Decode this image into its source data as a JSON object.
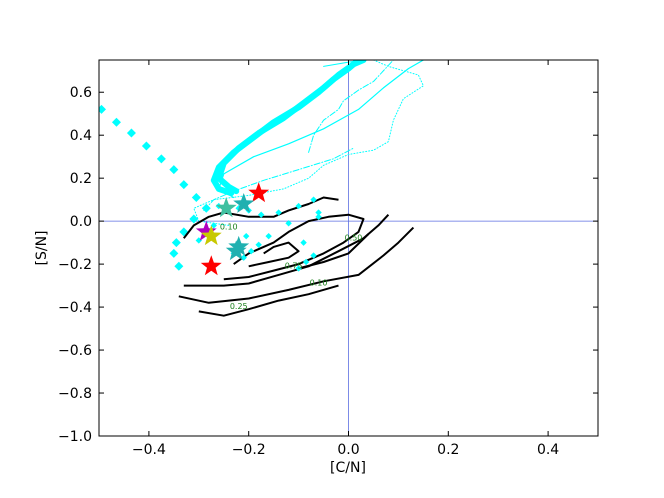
{
  "chart_data": {
    "type": "line",
    "title": "",
    "xlabel": "[C/N]",
    "ylabel": "[S/N]",
    "xlim": [
      -0.5,
      0.5
    ],
    "ylim": [
      -1.0,
      0.75
    ],
    "xticks": [
      -0.4,
      -0.2,
      0.0,
      0.2,
      0.4
    ],
    "xtick_labels": [
      "−0.4",
      "−0.2",
      "0.0",
      "0.2",
      "0.4"
    ],
    "yticks": [
      -1.0,
      -0.8,
      -0.6,
      -0.4,
      -0.2,
      0.0,
      0.2,
      0.4,
      0.6
    ],
    "ytick_labels": [
      "−1.0",
      "−0.8",
      "−0.6",
      "−0.4",
      "−0.2",
      "0.0",
      "0.2",
      "0.4",
      "0.6"
    ],
    "grid": false,
    "reference_lines": {
      "x": 0.0,
      "y": 0.0,
      "color": "#5b6ee1"
    },
    "colors": {
      "cyan": "#00ffff",
      "contour": "#000000",
      "contour_label": "#1a7f1a"
    },
    "cyan_curves": [
      {
        "style": "thick",
        "points": [
          [
            -0.225,
            0.14
          ],
          [
            -0.24,
            0.16
          ],
          [
            -0.26,
            0.2
          ],
          [
            -0.25,
            0.27
          ],
          [
            -0.22,
            0.34
          ],
          [
            -0.18,
            0.41
          ],
          [
            -0.13,
            0.48
          ],
          [
            -0.09,
            0.55
          ],
          [
            -0.05,
            0.62
          ],
          [
            -0.02,
            0.68
          ],
          [
            0.01,
            0.73
          ],
          [
            0.03,
            0.75
          ]
        ]
      },
      {
        "style": "thick",
        "points": [
          [
            -0.235,
            0.13
          ],
          [
            -0.26,
            0.15
          ],
          [
            -0.27,
            0.19
          ],
          [
            -0.26,
            0.25
          ],
          [
            -0.23,
            0.32
          ],
          [
            -0.19,
            0.39
          ],
          [
            -0.15,
            0.46
          ],
          [
            -0.1,
            0.53
          ],
          [
            -0.06,
            0.6
          ],
          [
            -0.03,
            0.66
          ],
          [
            0.0,
            0.71
          ],
          [
            0.02,
            0.75
          ]
        ]
      },
      {
        "style": "solid",
        "points": [
          [
            -0.23,
            0.11
          ],
          [
            -0.26,
            0.15
          ],
          [
            -0.25,
            0.22
          ],
          [
            -0.19,
            0.3
          ],
          [
            -0.12,
            0.36
          ],
          [
            -0.05,
            0.43
          ],
          [
            0.02,
            0.52
          ],
          [
            0.07,
            0.62
          ],
          [
            0.12,
            0.71
          ],
          [
            0.15,
            0.75
          ]
        ]
      },
      {
        "style": "dashdot",
        "points": [
          [
            -0.29,
            0.05
          ],
          [
            -0.27,
            0.1
          ],
          [
            -0.23,
            0.14
          ],
          [
            -0.17,
            0.19
          ],
          [
            -0.1,
            0.24
          ],
          [
            -0.03,
            0.29
          ],
          [
            0.01,
            0.34
          ]
        ]
      },
      {
        "style": "dashdot",
        "points": [
          [
            -0.08,
            0.32
          ],
          [
            -0.07,
            0.4
          ],
          [
            -0.05,
            0.47
          ],
          [
            -0.02,
            0.52
          ],
          [
            -0.01,
            0.56
          ],
          [
            0.02,
            0.61
          ],
          [
            0.05,
            0.65
          ],
          [
            0.09,
            0.75
          ]
        ]
      },
      {
        "style": "dotted",
        "points": [
          [
            -0.24,
            -0.02
          ],
          [
            -0.3,
            0.0
          ],
          [
            -0.31,
            0.06
          ],
          [
            -0.27,
            0.1
          ],
          [
            -0.2,
            0.12
          ],
          [
            -0.13,
            0.15
          ],
          [
            -0.08,
            0.2
          ],
          [
            -0.05,
            0.26
          ],
          [
            0.0,
            0.31
          ],
          [
            0.05,
            0.33
          ],
          [
            0.08,
            0.37
          ],
          [
            0.09,
            0.47
          ],
          [
            0.11,
            0.57
          ],
          [
            0.15,
            0.63
          ],
          [
            0.14,
            0.68
          ],
          [
            0.08,
            0.72
          ],
          [
            0.05,
            0.75
          ]
        ]
      },
      {
        "style": "solid-thin",
        "points": [
          [
            -0.05,
            0.72
          ],
          [
            0.0,
            0.74
          ],
          [
            0.03,
            0.75
          ]
        ]
      }
    ],
    "diamond_series": [
      [
        -0.495,
        0.52
      ],
      [
        -0.465,
        0.46
      ],
      [
        -0.435,
        0.41
      ],
      [
        -0.405,
        0.35
      ],
      [
        -0.375,
        0.29
      ],
      [
        -0.35,
        0.24
      ],
      [
        -0.33,
        0.17
      ],
      [
        -0.305,
        0.11
      ],
      [
        -0.285,
        0.06
      ],
      [
        -0.31,
        0.01
      ],
      [
        -0.33,
        -0.05
      ],
      [
        -0.345,
        -0.1
      ],
      [
        -0.35,
        -0.15
      ],
      [
        -0.34,
        -0.21
      ]
    ],
    "cyan_markers": [
      [
        -0.26,
        0.07
      ],
      [
        -0.22,
        0.06
      ],
      [
        -0.2,
        0.05
      ],
      [
        -0.175,
        0.03
      ],
      [
        -0.14,
        0.04
      ],
      [
        -0.1,
        0.07
      ],
      [
        -0.07,
        0.1
      ],
      [
        -0.06,
        0.04
      ],
      [
        -0.205,
        -0.07
      ],
      [
        -0.22,
        -0.11
      ],
      [
        -0.23,
        -0.15
      ],
      [
        -0.21,
        -0.17
      ],
      [
        -0.195,
        -0.14
      ],
      [
        -0.18,
        -0.11
      ],
      [
        -0.16,
        -0.07
      ],
      [
        -0.12,
        -0.01
      ],
      [
        -0.09,
        -0.1
      ],
      [
        -0.06,
        0.02
      ],
      [
        -0.1,
        -0.22
      ],
      [
        -0.085,
        -0.19
      ],
      [
        -0.07,
        -0.16
      ],
      [
        -0.3,
        -0.09
      ],
      [
        -0.285,
        -0.04
      ],
      [
        -0.27,
        -0.02
      ]
    ],
    "stars": [
      {
        "color": "#ff0000",
        "x": -0.18,
        "y": 0.13
      },
      {
        "color": "#ff0000",
        "x": -0.275,
        "y": -0.21
      },
      {
        "color": "#b000c0",
        "x": -0.285,
        "y": -0.05
      },
      {
        "color": "#c8c800",
        "x": -0.275,
        "y": -0.07
      },
      {
        "color": "#20b0b0",
        "x": -0.21,
        "y": 0.08
      },
      {
        "color": "#20b0b0",
        "x": -0.225,
        "y": -0.14
      },
      {
        "color": "#20b0b0",
        "x": -0.22,
        "y": -0.12
      },
      {
        "color": "#40c0a0",
        "x": -0.245,
        "y": 0.06
      }
    ],
    "contours": [
      {
        "level": "0.10",
        "points": [
          [
            -0.33,
            -0.08
          ],
          [
            -0.31,
            -0.02
          ],
          [
            -0.28,
            0.02
          ],
          [
            -0.25,
            0.04
          ],
          [
            -0.2,
            0.02
          ],
          [
            -0.15,
            0.02
          ],
          [
            -0.12,
            0.05
          ],
          [
            -0.08,
            0.08
          ],
          [
            -0.05,
            0.11
          ],
          [
            -0.02,
            0.1
          ]
        ]
      },
      {
        "level": "0.10",
        "points": [
          [
            -0.34,
            -0.35
          ],
          [
            -0.28,
            -0.38
          ],
          [
            -0.2,
            -0.36
          ],
          [
            -0.12,
            -0.32
          ],
          [
            -0.05,
            -0.28
          ],
          [
            0.02,
            -0.25
          ],
          [
            0.07,
            -0.16
          ],
          [
            0.1,
            -0.1
          ],
          [
            0.13,
            -0.03
          ]
        ]
      },
      {
        "level": "0.25",
        "points": [
          [
            -0.33,
            -0.3
          ],
          [
            -0.3,
            -0.3
          ],
          [
            -0.25,
            -0.3
          ],
          [
            -0.2,
            -0.29
          ],
          [
            -0.14,
            -0.25
          ],
          [
            -0.08,
            -0.21
          ],
          [
            -0.02,
            -0.14
          ],
          [
            0.03,
            -0.08
          ],
          [
            0.06,
            -0.02
          ],
          [
            0.08,
            0.03
          ]
        ]
      },
      {
        "level": "0.25",
        "points": [
          [
            -0.3,
            -0.42
          ],
          [
            -0.25,
            -0.44
          ],
          [
            -0.2,
            -0.41
          ],
          [
            -0.14,
            -0.37
          ],
          [
            -0.08,
            -0.34
          ],
          [
            -0.02,
            -0.3
          ]
        ]
      },
      {
        "level": "0.50",
        "points": [
          [
            -0.25,
            -0.27
          ],
          [
            -0.2,
            -0.26
          ],
          [
            -0.15,
            -0.23
          ],
          [
            -0.1,
            -0.2
          ],
          [
            -0.05,
            -0.15
          ],
          [
            -0.01,
            -0.1
          ],
          [
            0.02,
            -0.05
          ],
          [
            0.03,
            0.01
          ],
          [
            0.0,
            0.03
          ],
          [
            -0.04,
            0.02
          ],
          [
            -0.08,
            0.0
          ],
          [
            -0.12,
            -0.05
          ],
          [
            -0.15,
            -0.1
          ],
          [
            -0.2,
            -0.15
          ],
          [
            -0.23,
            -0.2
          ]
        ]
      },
      {
        "level": "0.50",
        "points": [
          [
            0.04,
            -0.06
          ],
          [
            0.0,
            -0.15
          ],
          [
            -0.05,
            -0.19
          ],
          [
            -0.1,
            -0.22
          ]
        ]
      },
      {
        "level": "0.75",
        "points": [
          [
            -0.2,
            -0.21
          ],
          [
            -0.16,
            -0.19
          ],
          [
            -0.12,
            -0.17
          ],
          [
            -0.1,
            -0.14
          ],
          [
            -0.12,
            -0.1
          ],
          [
            -0.15,
            -0.12
          ],
          [
            -0.17,
            -0.15
          ]
        ]
      }
    ],
    "contour_labels": [
      {
        "text": "0.10",
        "x": -0.06,
        "y": -0.3
      },
      {
        "text": "0.25",
        "x": -0.22,
        "y": -0.41
      },
      {
        "text": "0.50",
        "x": 0.01,
        "y": -0.09
      },
      {
        "text": "0.75",
        "x": -0.11,
        "y": -0.22
      },
      {
        "text": "0.10",
        "x": -0.24,
        "y": -0.04
      }
    ]
  }
}
